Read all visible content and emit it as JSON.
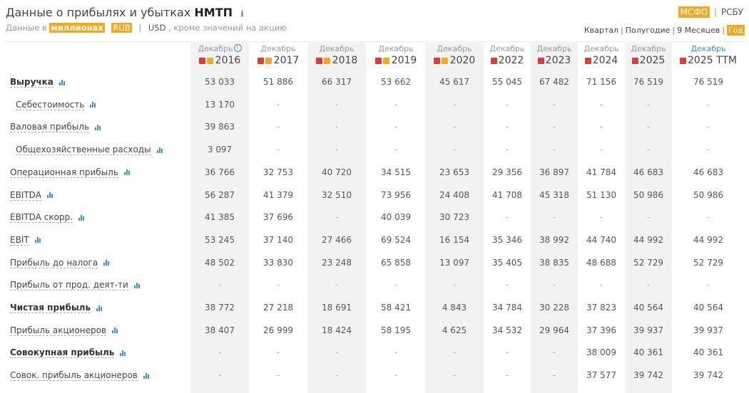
{
  "header": {
    "title_prefix": "Данные о прибылях и убытках",
    "title_company": "НМТП",
    "download_icon": "download-icon",
    "units_prefix": "Данные в",
    "units_scale": "миллионах",
    "currency_rub": "RUB",
    "currency_usd": "USD",
    "units_suffix": ", кроме значений на акцию"
  },
  "standards": {
    "msfo": "МСФО",
    "rsbu": "РСБУ"
  },
  "periods": {
    "quarter": "Квартал",
    "half": "Полугодие",
    "nine": "9 Месяцев",
    "year": "Год",
    "active": "year"
  },
  "colors": {
    "accent": "#f3a91d",
    "link_blue": "#3a8fd8",
    "pdf_red": "#e03a3a"
  },
  "columns": [
    {
      "month": "Декабрь",
      "year": "2016",
      "info": true,
      "pdf": true,
      "report": true,
      "shaded": true
    },
    {
      "month": "Декабрь",
      "year": "2017",
      "info": false,
      "pdf": true,
      "report": true,
      "shaded": false
    },
    {
      "month": "Декабрь",
      "year": "2018",
      "info": false,
      "pdf": true,
      "report": true,
      "shaded": true
    },
    {
      "month": "Декабрь",
      "year": "2019",
      "info": false,
      "pdf": true,
      "report": true,
      "shaded": false
    },
    {
      "month": "Декабрь",
      "year": "2020",
      "info": false,
      "pdf": true,
      "report": true,
      "shaded": true
    },
    {
      "month": "Декабрь",
      "year": "2022",
      "info": false,
      "pdf": true,
      "report": false,
      "shaded": false
    },
    {
      "month": "Декабрь",
      "year": "2023",
      "info": false,
      "pdf": true,
      "report": false,
      "shaded": true
    },
    {
      "month": "Декабрь",
      "year": "2024",
      "info": false,
      "pdf": true,
      "report": false,
      "shaded": false
    },
    {
      "month": "Декабрь",
      "year": "2025",
      "info": false,
      "pdf": true,
      "report": false,
      "shaded": true
    },
    {
      "month": "Декабрь",
      "year": "2025 TTM",
      "info": false,
      "pdf": true,
      "report": false,
      "shaded": false,
      "highlight": true
    }
  ],
  "rows": [
    {
      "label": "Выручка",
      "bold": true,
      "indent": false,
      "values": [
        "53 033",
        "51 886",
        "66 317",
        "53 662",
        "45 617",
        "55 045",
        "67 482",
        "71 156",
        "76 519",
        "76 519"
      ]
    },
    {
      "label": "Себестоимость",
      "bold": false,
      "indent": true,
      "values": [
        "13 170",
        "-",
        "-",
        "-",
        "-",
        "-",
        "-",
        "-",
        "-",
        "-"
      ]
    },
    {
      "label": "Валовая прибыль",
      "bold": false,
      "indent": false,
      "values": [
        "39 863",
        "-",
        "-",
        "-",
        "-",
        "-",
        "-",
        "-",
        "-",
        "-"
      ]
    },
    {
      "label": "Общехозяйственные расходы",
      "bold": false,
      "indent": true,
      "values": [
        "3 097",
        "-",
        "-",
        "-",
        "-",
        "-",
        "-",
        "-",
        "-",
        "-"
      ]
    },
    {
      "label": "Операционная прибыль",
      "bold": false,
      "indent": false,
      "values": [
        "36 766",
        "32 753",
        "40 720",
        "34 515",
        "23 653",
        "29 356",
        "36 897",
        "41 784",
        "46 683",
        "46 683"
      ]
    },
    {
      "label": "EBITDA",
      "bold": false,
      "indent": false,
      "values": [
        "56 287",
        "41 379",
        "32 510",
        "73 956",
        "24 408",
        "41 708",
        "45 318",
        "51 130",
        "50 986",
        "50 986"
      ]
    },
    {
      "label": "EBITDA скорр.",
      "bold": false,
      "indent": false,
      "values": [
        "41 385",
        "37 696",
        "-",
        "40 039",
        "30 723",
        "-",
        "-",
        "-",
        "-",
        "-"
      ]
    },
    {
      "label": "EBIT",
      "bold": false,
      "indent": false,
      "values": [
        "53 245",
        "37 140",
        "27 466",
        "69 524",
        "16 154",
        "35 346",
        "38 992",
        "44 740",
        "44 992",
        "44 992"
      ]
    },
    {
      "label": "Прибыль до налога",
      "bold": false,
      "indent": false,
      "values": [
        "48 502",
        "33 830",
        "23 248",
        "65 858",
        "13 097",
        "35 405",
        "38 835",
        "48 688",
        "52 729",
        "52 729"
      ]
    },
    {
      "label": "Прибыль от прод. деят-ти",
      "bold": false,
      "indent": false,
      "values": [
        "-",
        "-",
        "-",
        "-",
        "-",
        "-",
        "-",
        "-",
        "-",
        "-"
      ]
    },
    {
      "label": "Чистая прибыль",
      "bold": true,
      "indent": false,
      "values": [
        "38 772",
        "27 218",
        "18 691",
        "58 421",
        "4 843",
        "34 784",
        "30 228",
        "37 823",
        "40 564",
        "40 564"
      ]
    },
    {
      "label": "Прибыль акционеров",
      "bold": false,
      "indent": false,
      "values": [
        "38 407",
        "26 999",
        "18 424",
        "58 195",
        "4 625",
        "34 532",
        "29 964",
        "37 396",
        "39 937",
        "39 937"
      ]
    },
    {
      "label": "Совокупная прибыль",
      "bold": true,
      "indent": false,
      "values": [
        "-",
        "-",
        "-",
        "-",
        "-",
        "-",
        "-",
        "38 009",
        "40 361",
        "40 361"
      ]
    },
    {
      "label": "Совок. прибыль акционеров",
      "bold": false,
      "indent": false,
      "values": [
        "-",
        "-",
        "-",
        "-",
        "-",
        "-",
        "-",
        "37 577",
        "39 742",
        "39 742"
      ]
    }
  ]
}
